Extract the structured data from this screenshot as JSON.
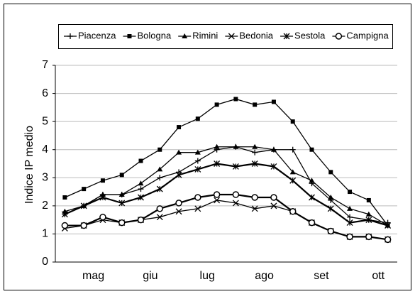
{
  "chart_data": {
    "type": "line",
    "y_label": "Indice IP medio",
    "x": [
      0,
      1,
      2,
      3,
      4,
      5,
      6,
      7,
      8,
      9,
      10,
      11,
      12,
      13,
      14,
      15,
      16,
      17
    ],
    "xlim": [
      -0.5,
      17.5
    ],
    "xticks": [
      {
        "value": 1.5,
        "label": "mag"
      },
      {
        "value": 4.5,
        "label": "giu"
      },
      {
        "value": 7.5,
        "label": "lug"
      },
      {
        "value": 10.5,
        "label": "ago"
      },
      {
        "value": 13.5,
        "label": "set"
      },
      {
        "value": 16.5,
        "label": "ott"
      }
    ],
    "ylim": [
      0,
      7
    ],
    "yticks": [
      0,
      1,
      2,
      3,
      4,
      5,
      6,
      7
    ],
    "grid": true,
    "legend": "top",
    "series": [
      {
        "name": "Piacenza",
        "color": "#000000",
        "marker": "plus",
        "values": [
          1.7,
          2.0,
          2.4,
          2.4,
          2.6,
          3.0,
          3.2,
          3.6,
          4.0,
          4.1,
          3.9,
          4.0,
          4.0,
          2.8,
          2.2,
          1.6,
          1.5,
          1.4
        ]
      },
      {
        "name": "Bologna",
        "color": "#000000",
        "marker": "square",
        "values": [
          2.3,
          2.6,
          2.9,
          3.1,
          3.6,
          4.0,
          4.8,
          5.1,
          5.6,
          5.8,
          5.6,
          5.7,
          5.0,
          4.0,
          3.2,
          2.5,
          2.2,
          1.3
        ]
      },
      {
        "name": "Rimini",
        "color": "#000000",
        "marker": "triangle",
        "values": [
          1.8,
          2.0,
          2.4,
          2.4,
          2.8,
          3.3,
          3.9,
          3.9,
          4.1,
          4.1,
          4.1,
          4.0,
          3.2,
          2.9,
          2.3,
          1.9,
          1.7,
          1.3
        ]
      },
      {
        "name": "Bedonia",
        "color": "#000000",
        "marker": "x",
        "values": [
          1.2,
          1.3,
          1.5,
          1.4,
          1.5,
          1.6,
          1.8,
          1.9,
          2.2,
          2.1,
          1.9,
          2.0,
          1.8,
          1.4,
          1.1,
          0.9,
          0.9,
          0.8
        ]
      },
      {
        "name": "Sestola",
        "color": "#000000",
        "marker": "asterisk",
        "values": [
          1.7,
          2.0,
          2.3,
          2.1,
          2.3,
          2.6,
          3.1,
          3.3,
          3.5,
          3.4,
          3.5,
          3.4,
          2.9,
          2.3,
          1.9,
          1.4,
          1.5,
          1.3
        ]
      },
      {
        "name": "Campigna",
        "color": "#000000",
        "marker": "circle",
        "values": [
          1.3,
          1.3,
          1.6,
          1.4,
          1.5,
          1.9,
          2.1,
          2.3,
          2.4,
          2.4,
          2.3,
          2.3,
          1.8,
          1.4,
          1.1,
          0.9,
          0.9,
          0.8
        ]
      }
    ]
  }
}
